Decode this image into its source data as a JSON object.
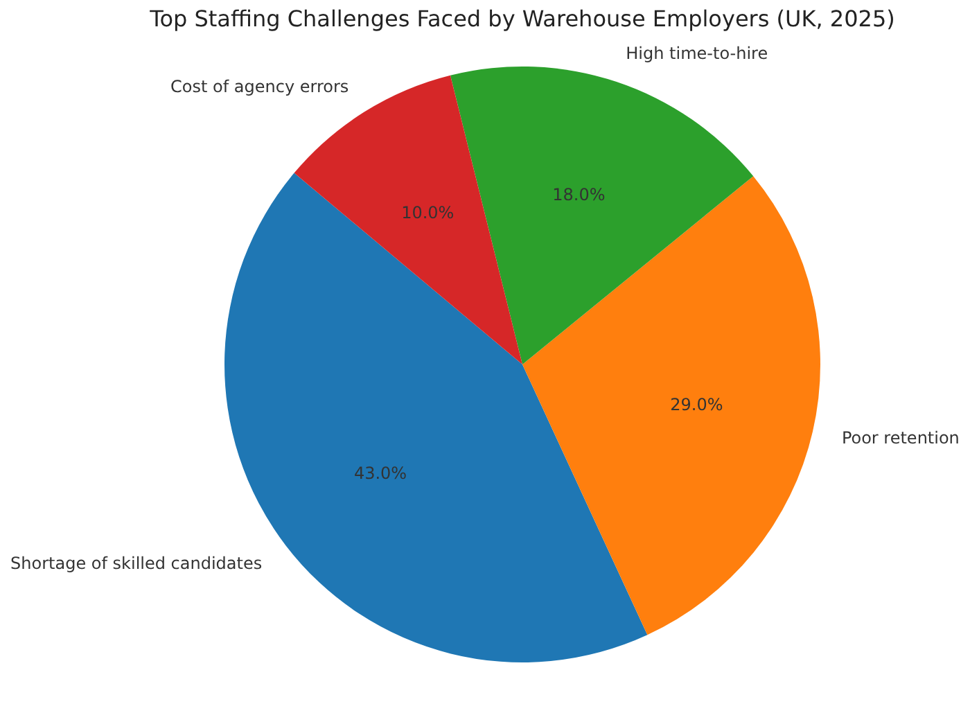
{
  "chart_data": {
    "type": "pie",
    "title": "Top Staffing Challenges Faced by Warehouse Employers (UK, 2025)",
    "categories": [
      "Shortage of skilled candidates",
      "Poor retention",
      "High time-to-hire",
      "Cost of agency errors"
    ],
    "values": [
      43,
      29,
      18,
      10
    ],
    "value_labels": [
      "43.0%",
      "29.0%",
      "18.0%",
      "10.0%"
    ],
    "colors": [
      "#1f77b4",
      "#ff7f0e",
      "#2ca02c",
      "#d62728"
    ]
  }
}
